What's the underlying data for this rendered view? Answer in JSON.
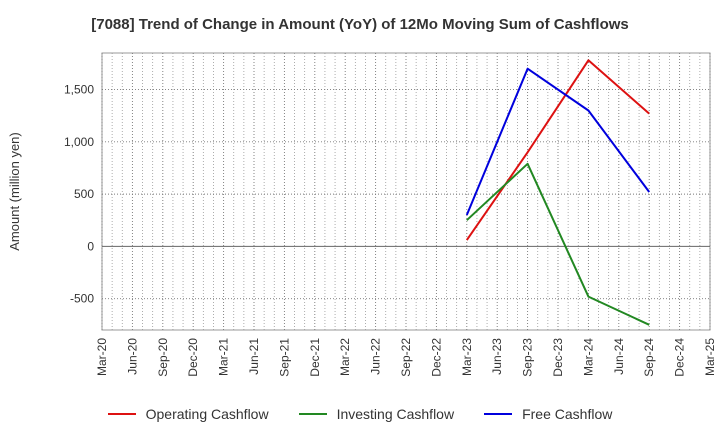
{
  "chart_data": {
    "type": "line",
    "title": "[7088]  Trend of Change in Amount (YoY) of 12Mo Moving Sum of Cashflows",
    "ylabel": "Amount (million yen)",
    "xlabel": "",
    "categories": [
      "Mar-20",
      "Jun-20",
      "Sep-20",
      "Dec-20",
      "Mar-21",
      "Jun-21",
      "Sep-21",
      "Dec-21",
      "Mar-22",
      "Jun-22",
      "Sep-22",
      "Dec-22",
      "Mar-23",
      "Jun-23",
      "Sep-23",
      "Dec-23",
      "Mar-24",
      "Jun-24",
      "Sep-24",
      "Dec-24",
      "Mar-25"
    ],
    "yticks": [
      -500,
      0,
      500,
      1000,
      1500
    ],
    "ytick_labels": [
      "-500",
      "0",
      "500",
      "1,000",
      "1,500"
    ],
    "ylim": [
      -800,
      1850
    ],
    "grid": true,
    "legend_position": "bottom",
    "series": [
      {
        "name": "Operating Cashflow",
        "color": "#dd1111",
        "x": [
          "Mar-23",
          "Sep-23",
          "Mar-24",
          "Sep-24"
        ],
        "values": [
          60,
          900,
          1780,
          1270
        ]
      },
      {
        "name": "Investing Cashflow",
        "color": "#228822",
        "x": [
          "Mar-23",
          "Sep-23",
          "Mar-24",
          "Sep-24"
        ],
        "values": [
          250,
          790,
          -480,
          -750
        ]
      },
      {
        "name": "Free Cashflow",
        "color": "#0000dd",
        "x": [
          "Mar-23",
          "Sep-23",
          "Mar-24",
          "Sep-24"
        ],
        "values": [
          300,
          1700,
          1300,
          520
        ]
      }
    ]
  }
}
